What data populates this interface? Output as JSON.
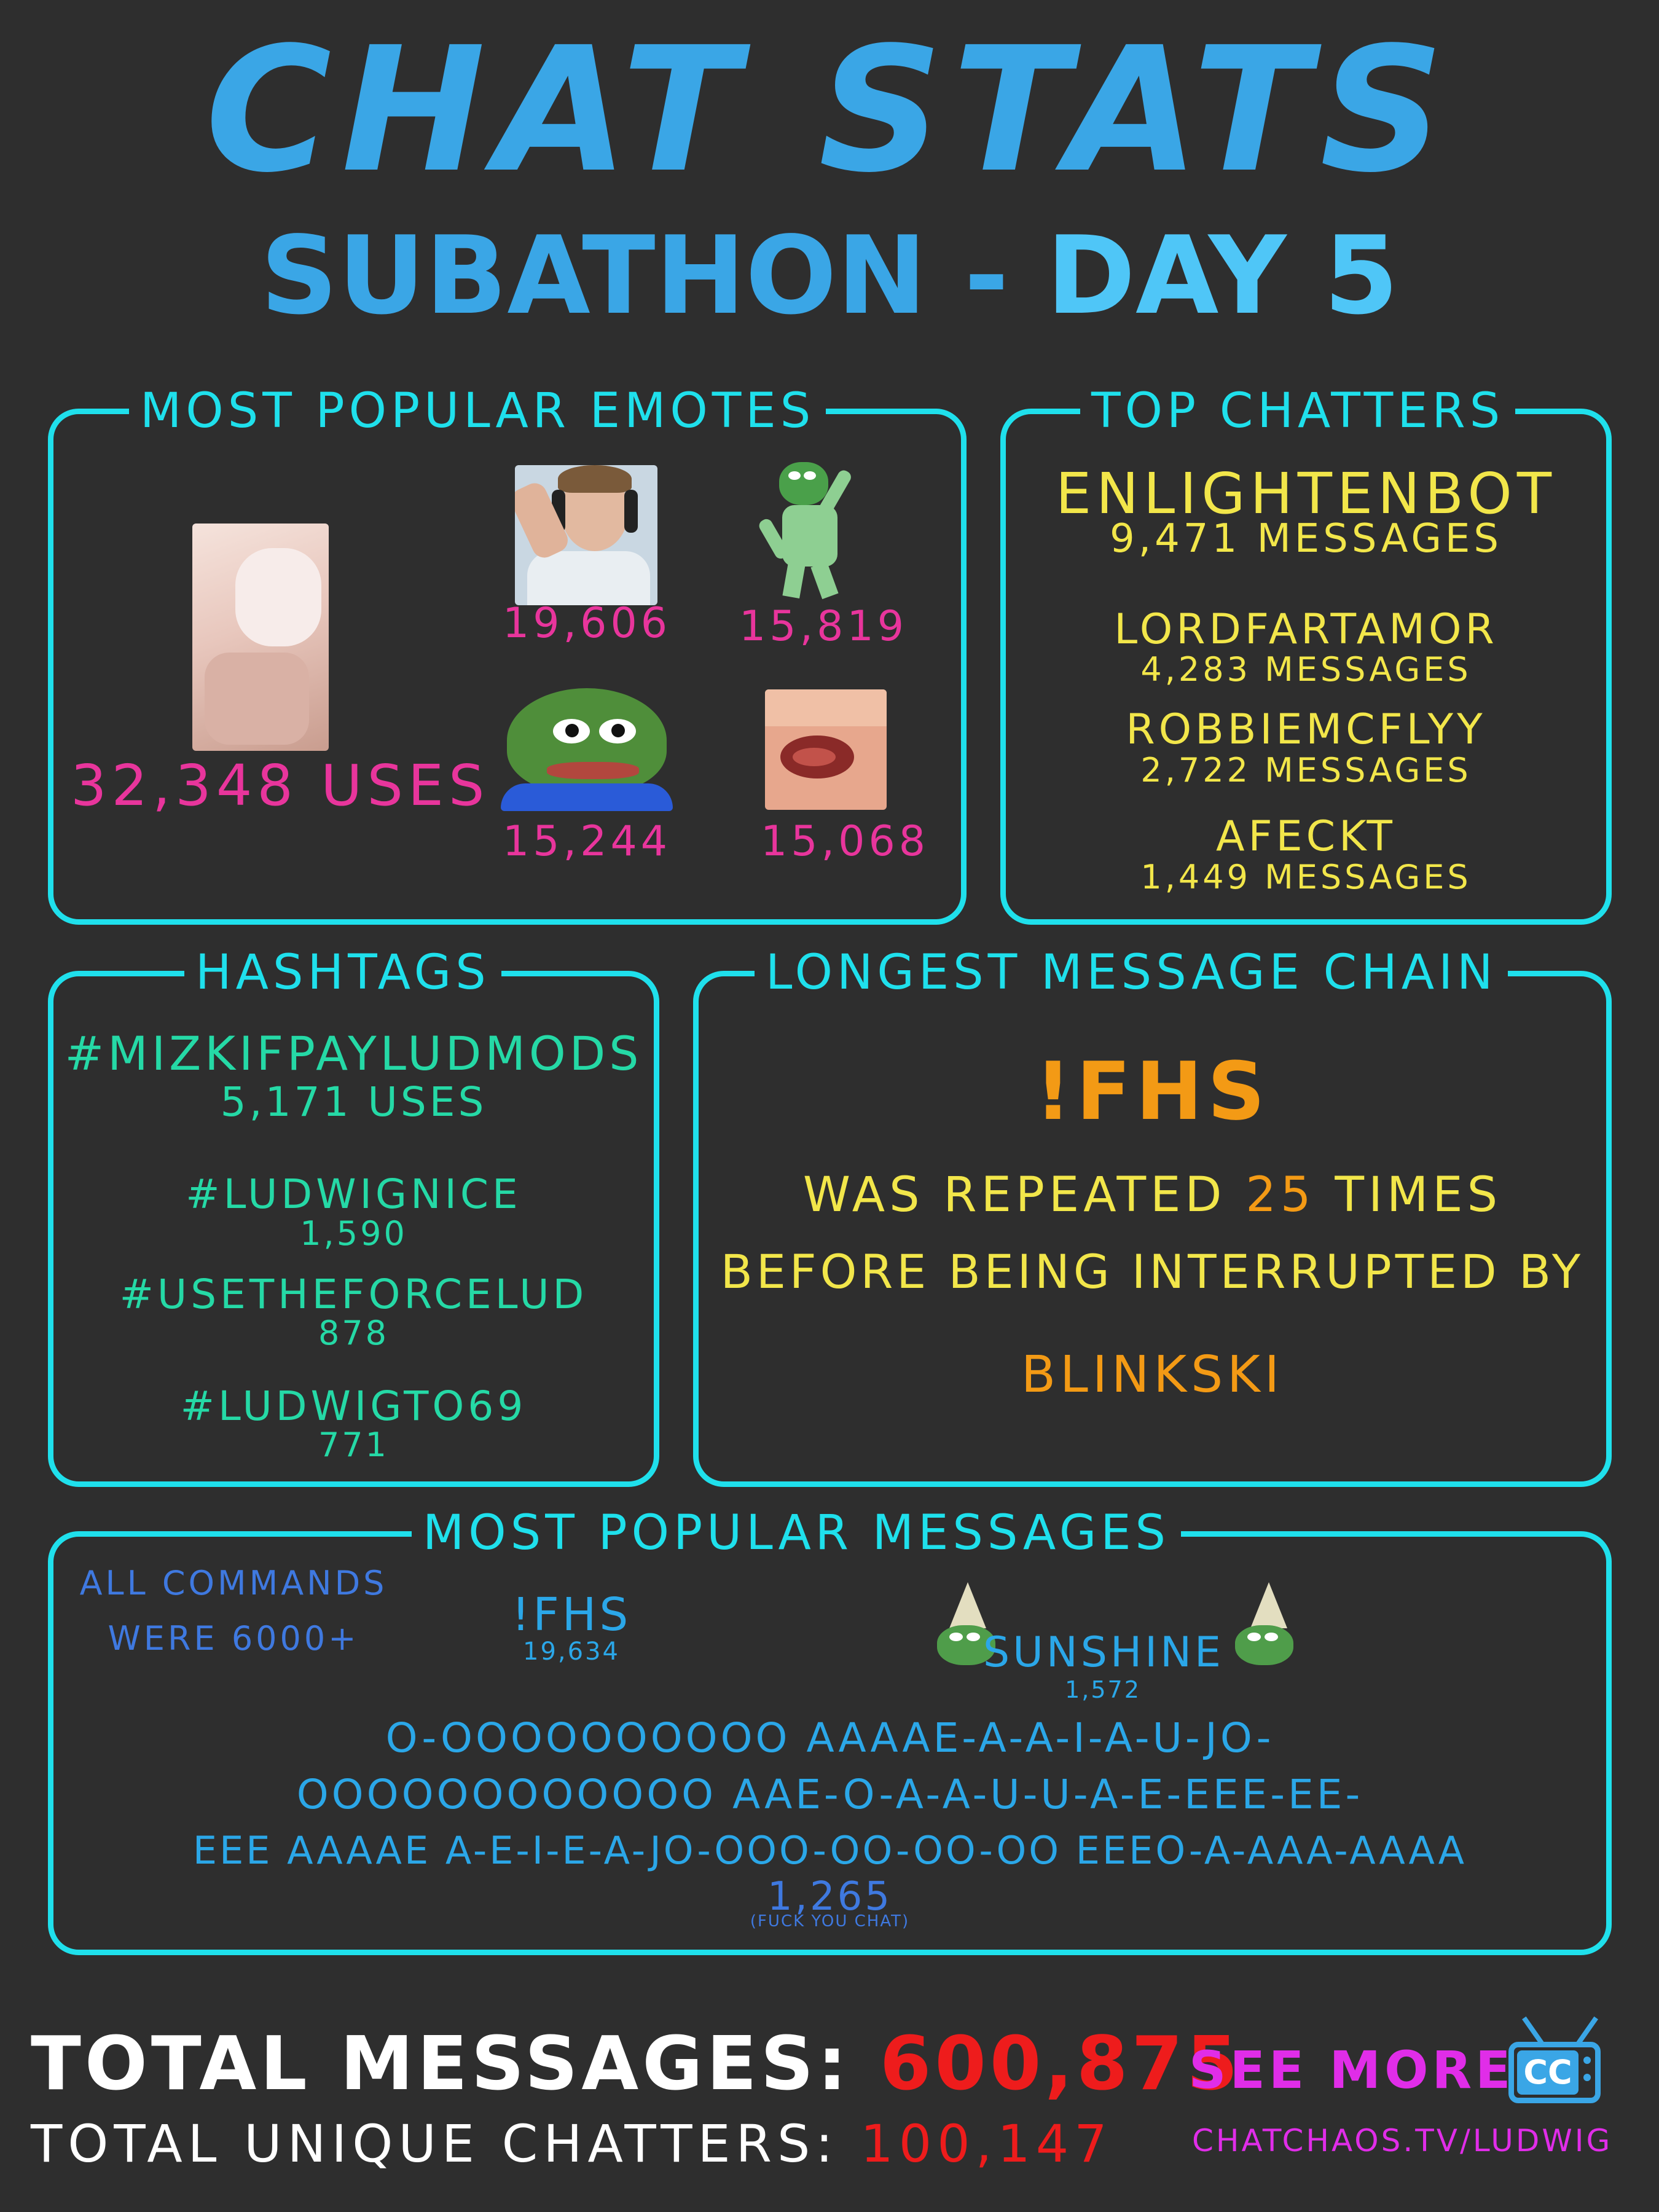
{
  "header": {
    "title": "CHAT STATS",
    "subtitle_prefix": "SUBATHON -",
    "subtitle_day": "DAY 5"
  },
  "emotes": {
    "title": "MOST POPULAR EMOTES",
    "top_value": "32,348 USES",
    "items": [
      {
        "icon": "salute-streamer-emote",
        "value": "19,606"
      },
      {
        "icon": "pepe-dance-emote",
        "value": "15,819"
      },
      {
        "icon": "pepe-angry-emote",
        "value": "15,244"
      },
      {
        "icon": "mouth-closeup-emote",
        "value": "15,068"
      }
    ]
  },
  "chatters": {
    "title": "TOP CHATTERS",
    "items": [
      {
        "name": "ENLIGHTENBOT",
        "count": "9,471 MESSAGES"
      },
      {
        "name": "LORDFARTAMOR",
        "count": "4,283 MESSAGES"
      },
      {
        "name": "ROBBIEMCFLYY",
        "count": "2,722 MESSAGES"
      },
      {
        "name": "AFECKT",
        "count": "1,449 MESSAGES"
      }
    ]
  },
  "hashtags": {
    "title": "HASHTAGS",
    "items": [
      {
        "tag": "#MIZKIFPAYLUDMODS",
        "count": "5,171 USES"
      },
      {
        "tag": "#LUDWIGNICE",
        "count": "1,590"
      },
      {
        "tag": "#USETHEFORCELUD",
        "count": "878"
      },
      {
        "tag": "#LUDWIGTO69",
        "count": "771"
      }
    ]
  },
  "chain": {
    "title": "LONGEST MESSAGE CHAIN",
    "message": "!FHS",
    "line1_a": "WAS REPEATED",
    "line1_num": "25",
    "line1_b": "TIMES",
    "line2": "BEFORE BEING INTERRUPTED BY",
    "user": "BLINKSKI"
  },
  "messages": {
    "title": "MOST POPULAR MESSAGES",
    "note_line1": "ALL COMMANDS",
    "note_line2": "WERE 6000+",
    "fhs": "!FHS",
    "fhs_count": "19,634",
    "sunshine": "SUNSHINE",
    "sunshine_count": "1,572",
    "long_line1": "O-OOOOOOOOOO AAAAE-A-A-I-A-U-JO-",
    "long_line2": "OOOOOOOOOOOO AAE-O-A-A-U-U-A-E-EEE-EE-",
    "long_line3": "EEE AAAAE A-E-I-E-A-JO-OOO-OO-OO-OO EEEO-A-AAA-AAAA",
    "long_count": "1,265",
    "long_note": "(FUCK YOU CHAT)"
  },
  "footer": {
    "total_label": "TOTAL MESSAGES:",
    "total_value": "600,875",
    "unique_label": "TOTAL UNIQUE CHATTERS:",
    "unique_value": "100,147",
    "see_more": "SEE MORE",
    "url": "CHATCHAOS.TV/LUDWIG",
    "logo_text": "CC"
  },
  "colors": {
    "background": "#2e2e2e",
    "accent_cyan": "#1fe0ec",
    "title_blue": "#3aa6e6",
    "pink": "#e8359c",
    "yellow": "#f2e64a",
    "green": "#25d9a6",
    "orange": "#f39a15",
    "red": "#ee1c1c",
    "magenta": "#e02de8"
  }
}
